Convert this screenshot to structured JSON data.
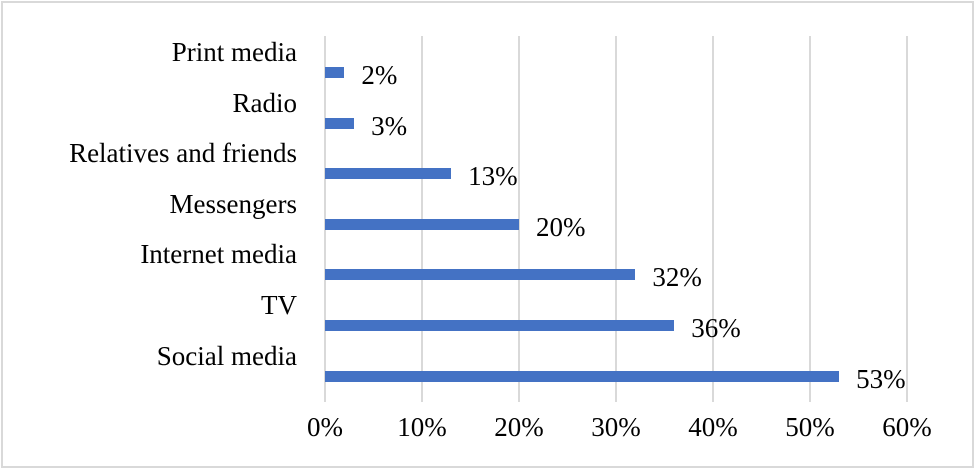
{
  "chart_data": {
    "type": "bar",
    "orientation": "horizontal",
    "title": "",
    "xlabel": "",
    "ylabel": "",
    "categories": [
      "Print media",
      "Radio",
      "Relatives and friends",
      "Messengers",
      "Internet media",
      "TV",
      "Social media"
    ],
    "values": [
      2,
      3,
      13,
      20,
      32,
      36,
      53
    ],
    "value_labels": [
      "2%",
      "3%",
      "13%",
      "20%",
      "32%",
      "36%",
      "53%"
    ],
    "xlim": [
      0,
      60
    ],
    "x_ticks": [
      "0%",
      "10%",
      "20%",
      "30%",
      "40%",
      "50%",
      "60%"
    ],
    "grid": true,
    "legend": null,
    "bar_color": "#4472c4",
    "gridline_color": "#d9d9d9"
  }
}
